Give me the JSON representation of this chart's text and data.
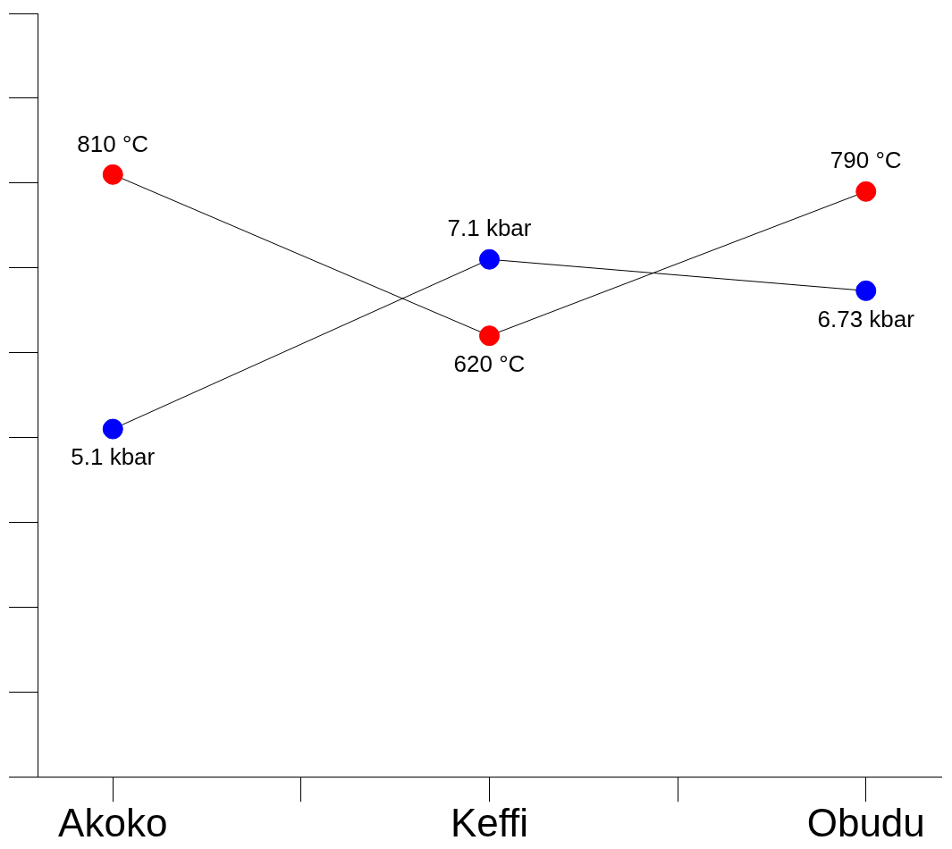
{
  "chart_data": {
    "type": "line",
    "categories": [
      "Akoko",
      "Keffi",
      "Obudu"
    ],
    "series": [
      {
        "color": "#ff0000",
        "values": [
          810,
          620,
          790
        ],
        "value_labels": [
          "810 °C",
          "620 °C",
          "790 °C"
        ]
      },
      {
        "color": "#0000ff",
        "values": [
          5.1,
          7.1,
          6.73
        ],
        "value_labels": [
          "5.1 kbar",
          "7.1 kbar",
          "6.73 kbar"
        ],
        "axis": "y2"
      }
    ],
    "ylim": [
      100,
      1000
    ],
    "y2lim": [
      1,
      10
    ],
    "marker": "circle",
    "line_style": "solid",
    "grid": false
  }
}
